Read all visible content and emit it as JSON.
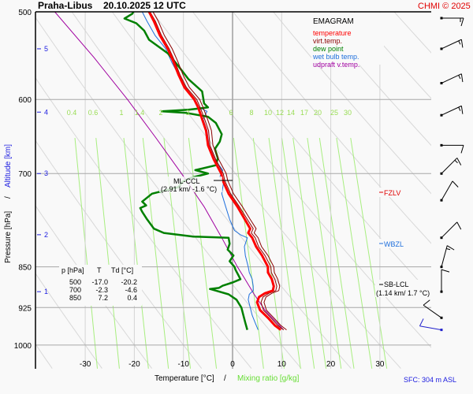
{
  "header": {
    "station": "Praha-Libus",
    "datetime": "20.10.2025 12 UTC",
    "credit": "CHMI © 2025"
  },
  "legend": {
    "title": "EMAGRAM",
    "items": [
      {
        "label": "temperature",
        "color": "#ff0000"
      },
      {
        "label": "virt.temp.",
        "color": "#8b0000"
      },
      {
        "label": "dew point",
        "color": "#008000"
      },
      {
        "label": "wet bulb temp.",
        "color": "#1e6fdc"
      },
      {
        "label": "udpraft v.temp.",
        "color": "#a000a0"
      }
    ]
  },
  "table": {
    "headers": [
      "p [hPa]",
      "T",
      "Td [°C]"
    ],
    "rows": [
      [
        "500",
        "-17.0",
        "-20.2"
      ],
      [
        "700",
        "-2.3",
        "-4.6"
      ],
      [
        "850",
        "7.2",
        "0.4"
      ]
    ]
  },
  "annotations": {
    "ml_ccl": {
      "label": "ML-CCL",
      "detail": "(2.91 km/ -1.6 °C)"
    },
    "fzlv": {
      "label": "FZLV"
    },
    "wbzl": {
      "label": "WBZL"
    },
    "sb_lcl": {
      "label": "SB-LCL",
      "detail": "(1.14 km/ 1.7 °C)"
    }
  },
  "footer": {
    "surface": "SFC: 304 m ASL"
  },
  "chart_data": {
    "type": "line",
    "title": "Praha-Libus 20.10.2025 12 UTC",
    "subtitle": "EMAGRAM",
    "xlabel": "Temperature [°C]",
    "xlabel2": "Mixing ratio [g/kg]",
    "ylabel": "Pressure [hPa]",
    "ylabel2": "Altitude [km]",
    "xlim": [
      -40,
      40
    ],
    "ylim": [
      1000,
      500
    ],
    "y_scale": "log",
    "x_ticks": [
      -30,
      -20,
      -10,
      0,
      10,
      20,
      30
    ],
    "y_ticks": [
      500,
      600,
      700,
      850,
      925,
      1000
    ],
    "altitude_ticks": [
      {
        "km": 1,
        "p": 895
      },
      {
        "km": 2,
        "p": 795
      },
      {
        "km": 3,
        "p": 700
      },
      {
        "km": 4,
        "p": 616
      },
      {
        "km": 5,
        "p": 540
      }
    ],
    "mixing_ratio_labels": [
      "0.4",
      "0.6",
      "1",
      "1.4",
      "2",
      "3",
      "6",
      "8",
      "10",
      "12",
      "14",
      "17",
      "20",
      "25",
      "30"
    ],
    "grid": true,
    "series": [
      {
        "name": "temperature",
        "color": "#ff0000",
        "points": [
          [
            969,
            9.8
          ],
          [
            960,
            8.6
          ],
          [
            945,
            7.2
          ],
          [
            930,
            5.6
          ],
          [
            915,
            5.0
          ],
          [
            905,
            5.4
          ],
          [
            898,
            6.6
          ],
          [
            893,
            8.2
          ],
          [
            885,
            8.4
          ],
          [
            872,
            8.0
          ],
          [
            860,
            7.2
          ],
          [
            850,
            7.2
          ],
          [
            830,
            6.0
          ],
          [
            815,
            4.8
          ],
          [
            800,
            4.0
          ],
          [
            792,
            3.2
          ],
          [
            785,
            3.6
          ],
          [
            770,
            2.5
          ],
          [
            750,
            1.0
          ],
          [
            730,
            -0.8
          ],
          [
            710,
            -2.0
          ],
          [
            700,
            -2.3
          ],
          [
            680,
            -3.8
          ],
          [
            660,
            -5.0
          ],
          [
            640,
            -5.4
          ],
          [
            625,
            -6.2
          ],
          [
            610,
            -7.0
          ],
          [
            600,
            -7.8
          ],
          [
            585,
            -9.8
          ],
          [
            570,
            -11.0
          ],
          [
            555,
            -12.0
          ],
          [
            540,
            -13.2
          ],
          [
            525,
            -14.8
          ],
          [
            510,
            -16.0
          ],
          [
            500,
            -17.0
          ]
        ]
      },
      {
        "name": "virt.temp.",
        "color": "#8b0000",
        "points": [
          [
            969,
            10.4
          ],
          [
            960,
            9.2
          ],
          [
            945,
            7.8
          ],
          [
            930,
            6.3
          ],
          [
            915,
            5.8
          ],
          [
            905,
            6.2
          ],
          [
            898,
            7.4
          ],
          [
            893,
            8.8
          ],
          [
            885,
            9.0
          ],
          [
            872,
            8.6
          ],
          [
            860,
            7.9
          ],
          [
            850,
            7.8
          ],
          [
            830,
            6.6
          ],
          [
            815,
            5.3
          ],
          [
            800,
            4.6
          ],
          [
            792,
            3.8
          ],
          [
            785,
            4.2
          ],
          [
            770,
            3.0
          ],
          [
            750,
            1.4
          ],
          [
            730,
            -0.4
          ],
          [
            710,
            -1.6
          ],
          [
            700,
            -1.9
          ],
          [
            680,
            -3.4
          ],
          [
            660,
            -4.6
          ],
          [
            640,
            -4.9
          ],
          [
            625,
            -5.7
          ],
          [
            610,
            -6.6
          ],
          [
            600,
            -7.3
          ],
          [
            585,
            -9.4
          ],
          [
            570,
            -10.7
          ],
          [
            555,
            -11.7
          ],
          [
            540,
            -12.9
          ],
          [
            525,
            -14.5
          ],
          [
            510,
            -15.7
          ],
          [
            500,
            -16.8
          ]
        ]
      },
      {
        "name": "dew point",
        "color": "#008000",
        "points": [
          [
            969,
            3.0
          ],
          [
            955,
            2.6
          ],
          [
            940,
            2.2
          ],
          [
            925,
            1.8
          ],
          [
            910,
            0.8
          ],
          [
            900,
            -0.8
          ],
          [
            893,
            -3.4
          ],
          [
            890,
            -4.6
          ],
          [
            888,
            -2.8
          ],
          [
            884,
            -2.0
          ],
          [
            878,
            0.0
          ],
          [
            872,
            1.6
          ],
          [
            865,
            1.2
          ],
          [
            855,
            0.6
          ],
          [
            850,
            0.4
          ],
          [
            840,
            -0.6
          ],
          [
            830,
            0.2
          ],
          [
            820,
            -1.0
          ],
          [
            810,
            -0.6
          ],
          [
            800,
            -0.8
          ],
          [
            798,
            -8.0
          ],
          [
            792,
            -14.0
          ],
          [
            785,
            -16.0
          ],
          [
            770,
            -17.4
          ],
          [
            758,
            -18.4
          ],
          [
            752,
            -18.8
          ],
          [
            748,
            -17.6
          ],
          [
            742,
            -18.4
          ],
          [
            730,
            -16.4
          ],
          [
            720,
            -11.0
          ],
          [
            712,
            -10.2
          ],
          [
            706,
            -8.4
          ],
          [
            700,
            -5.0
          ],
          [
            695,
            -7.6
          ],
          [
            688,
            -3.4
          ],
          [
            678,
            -3.0
          ],
          [
            665,
            -3.6
          ],
          [
            655,
            -2.6
          ],
          [
            645,
            -2.2
          ],
          [
            630,
            -3.4
          ],
          [
            622,
            -5.0
          ],
          [
            617,
            -9.4
          ],
          [
            615,
            -14.4
          ],
          [
            613,
            -9.0
          ],
          [
            610,
            -5.0
          ],
          [
            605,
            -5.8
          ],
          [
            590,
            -6.2
          ],
          [
            575,
            -9.0
          ],
          [
            560,
            -11.0
          ],
          [
            545,
            -13.2
          ],
          [
            530,
            -17.0
          ],
          [
            520,
            -18.0
          ],
          [
            512,
            -19.6
          ],
          [
            507,
            -22.0
          ],
          [
            502,
            -20.4
          ],
          [
            500,
            -20.2
          ]
        ]
      },
      {
        "name": "wet bulb temp.",
        "color": "#1e6fdc",
        "points": [
          [
            969,
            5.2
          ],
          [
            955,
            4.6
          ],
          [
            940,
            4.0
          ],
          [
            925,
            3.6
          ],
          [
            910,
            3.2
          ],
          [
            900,
            3.4
          ],
          [
            893,
            4.2
          ],
          [
            885,
            4.2
          ],
          [
            872,
            4.0
          ],
          [
            860,
            3.4
          ],
          [
            850,
            3.2
          ],
          [
            830,
            2.6
          ],
          [
            815,
            2.4
          ],
          [
            800,
            3.0
          ],
          [
            795,
            1.6
          ],
          [
            788,
            0.4
          ],
          [
            770,
            -0.6
          ],
          [
            750,
            -1.4
          ],
          [
            730,
            -2.2
          ],
          [
            712,
            -1.8
          ],
          [
            705,
            -2.6
          ],
          [
            695,
            -2.0
          ],
          [
            680,
            -3.6
          ],
          [
            660,
            -4.8
          ],
          [
            640,
            -5.2
          ],
          [
            625,
            -6.0
          ],
          [
            615,
            -5.2
          ],
          [
            610,
            -6.8
          ],
          [
            600,
            -8.0
          ],
          [
            585,
            -9.6
          ],
          [
            570,
            -11.0
          ],
          [
            555,
            -12.4
          ],
          [
            540,
            -13.6
          ],
          [
            525,
            -15.8
          ],
          [
            510,
            -17.4
          ],
          [
            500,
            -18.4
          ]
        ]
      },
      {
        "name": "udpraft v.temp.",
        "color": "#a000a0",
        "points": [
          [
            969,
            10.4
          ],
          [
            930,
            6.6
          ],
          [
            900,
            4.4
          ],
          [
            870,
            2.4
          ],
          [
            850,
            1.0
          ],
          [
            800,
            -2.2
          ],
          [
            750,
            -5.8
          ],
          [
            700,
            -10.4
          ],
          [
            650,
            -15.6
          ],
          [
            600,
            -21.4
          ],
          [
            550,
            -28.2
          ],
          [
            500,
            -36.2
          ]
        ]
      }
    ],
    "levels": [
      {
        "name": "ML-CCL",
        "p": 708
      },
      {
        "name": "FZLV",
        "p": 731
      },
      {
        "name": "WBZL",
        "p": 812
      },
      {
        "name": "SB-LCL",
        "p": 866
      }
    ],
    "wind_barbs": [
      {
        "p": 500,
        "direction": 270,
        "speed_kt": 15
      },
      {
        "p": 540,
        "direction": 245,
        "speed_kt": 15
      },
      {
        "p": 580,
        "direction": 245,
        "speed_kt": 15
      },
      {
        "p": 620,
        "direction": 245,
        "speed_kt": 15
      },
      {
        "p": 660,
        "direction": 270,
        "speed_kt": 10
      },
      {
        "p": 700,
        "direction": 225,
        "speed_kt": 15
      },
      {
        "p": 740,
        "direction": 210,
        "speed_kt": 10
      },
      {
        "p": 800,
        "direction": 225,
        "speed_kt": 10
      },
      {
        "p": 850,
        "direction": 195,
        "speed_kt": 15
      },
      {
        "p": 895,
        "direction": 180,
        "speed_kt": 10
      },
      {
        "p": 945,
        "direction": 125,
        "speed_kt": 10
      },
      {
        "p": 969,
        "direction": 100,
        "speed_kt": 10
      }
    ]
  }
}
